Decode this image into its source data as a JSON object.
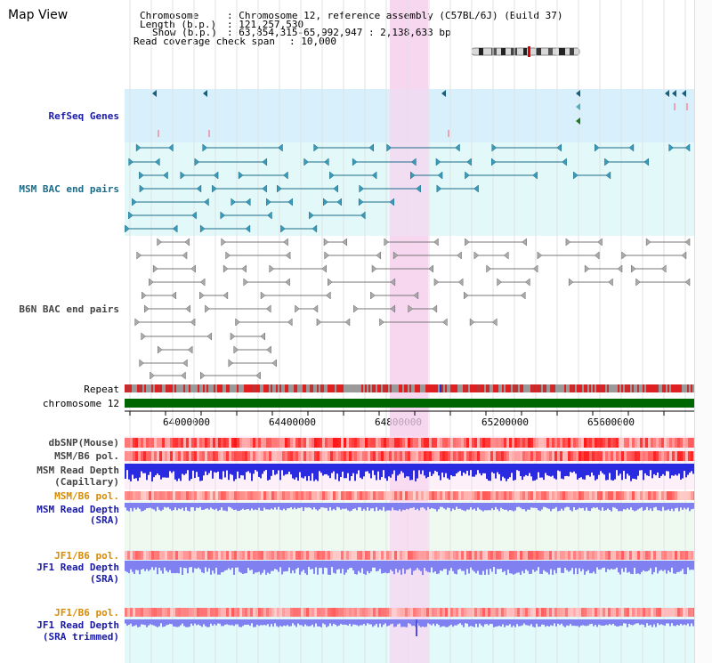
{
  "title": "Map View",
  "header": {
    "chromosome_key": "Chromosome",
    "chromosome_val": ": Chromosome 12, reference assembly (C57BL/6J) (Build 37)",
    "length_key": "Length (b.p.)",
    "length_val": ": 121,257,530",
    "show_key": "Show (b.p.)",
    "show_val": ": 63,854,315-65,992,947 : 2,138,633 bp",
    "span_key": "Read coverage check span",
    "span_val": ": 10,000"
  },
  "tracks": {
    "refseq": "RefSeq Genes",
    "msm_bac": "MSM BAC end pairs",
    "b6n_bac": "B6N BAC end pairs",
    "repeat": "Repeat",
    "chromosome": "chromosome 12",
    "dbsnp": "dbSNP(Mouse)",
    "msm_b6_pol_1": "MSM/B6 pol.",
    "msm_depth_cap_1": "MSM Read Depth",
    "msm_depth_cap_2": "(Capillary)",
    "msm_b6_pol_2": "MSM/B6 pol.",
    "msm_depth_sra_1": "MSM Read Depth",
    "msm_depth_sra_2": "(SRA)",
    "jf1_pol_1": "JF1/B6 pol.",
    "jf1_depth_1": "JF1 Read Depth",
    "jf1_depth_2": "(SRA)",
    "jf1_pol_2": "JF1/B6 pol.",
    "jf1_trim_1": "JF1 Read Depth",
    "jf1_trim_2": "(SRA trimmed)"
  },
  "ruler": {
    "ticks": [
      "64000000",
      "64400000",
      "64800000",
      "65200000",
      "65600000"
    ]
  },
  "colors": {
    "highlight": "#f7d6f0",
    "refseq_bg": "#d7f0fb",
    "msm_bg": "#e3f8f8",
    "teal_feature": "#1a6c88",
    "gray_feature": "#777777",
    "repeat_red": "#e02020",
    "chromosome_green": "#006600",
    "snp_red": "#ff0000",
    "depth_blue": "#2a2ae0",
    "depth_light_blue": "#8080f0",
    "panel_pink": "#fdf0f8",
    "panel_green": "#eefaf0",
    "panel_cyan": "#e3fafa"
  }
}
